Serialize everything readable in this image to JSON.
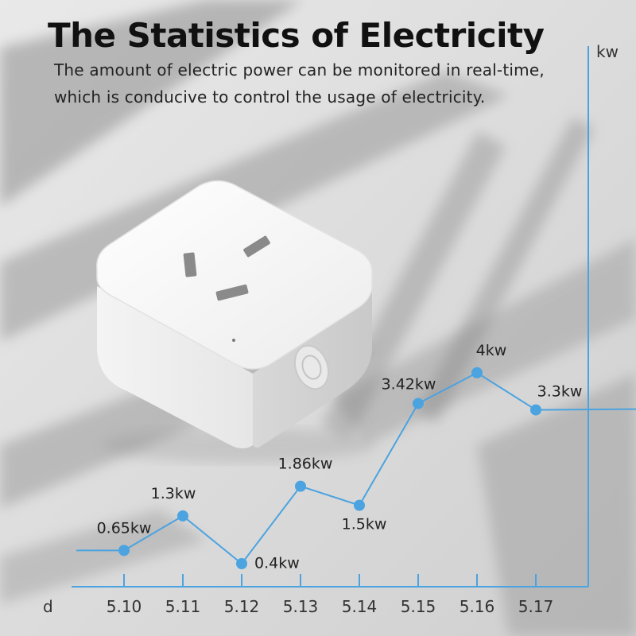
{
  "title": "The Statistics of Electricity",
  "subtitle_lines": [
    "The amount of electric power can be monitored in real-time,",
    "which is conducive to control the usage of electricity."
  ],
  "chart_data": {
    "type": "line",
    "categories": [
      "5.10",
      "5.11",
      "5.12",
      "5.13",
      "5.14",
      "5.15",
      "5.16",
      "5.17"
    ],
    "values": [
      0.65,
      1.3,
      0.4,
      1.86,
      1.5,
      3.42,
      4,
      3.3
    ],
    "data_labels": [
      "0.65kw",
      "1.3kw",
      "0.4kw",
      "1.86kw",
      "1.5kw",
      "3.42kw",
      "4kw",
      "3.3kw"
    ],
    "xlabel": "d",
    "ylabel": "kw",
    "series_color": "#4ba3e0",
    "grid": false
  }
}
